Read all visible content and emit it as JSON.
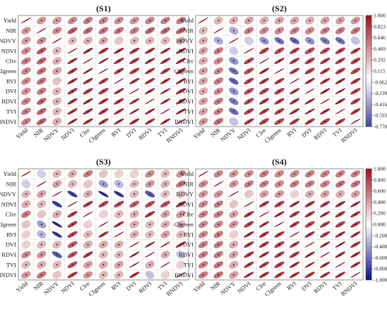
{
  "variables": [
    "Yield",
    "NIR",
    "NDVY",
    "NDVI",
    "CIre",
    "CIgreen",
    "RVI",
    "DVI",
    "RDVI",
    "TVI",
    "BNDVI"
  ],
  "colorbars": [
    {
      "ticks": [
        "1.000",
        "0.823",
        "0.646",
        "0.469",
        "0.292",
        "0.115",
        "-0.062",
        "-0.239",
        "-0.416",
        "-0.593",
        "-0.770"
      ],
      "min": -0.77,
      "max": 1.0
    },
    {
      "ticks": [
        "1.000",
        "0.800",
        "0.600",
        "0.400",
        "0.200",
        "0.000",
        "-0.200",
        "-0.400",
        "-0.600",
        "-0.800",
        "-1.000"
      ],
      "min": -1.0,
      "max": 1.0
    }
  ],
  "colors": {
    "negative": "#0b0b8f",
    "neutral": "#ffffff",
    "positive": "#a30d1a",
    "mark": "#2e7d32",
    "grid": "#dddddd"
  },
  "chart_data": [
    {
      "type": "heatmap",
      "title": "(S1)",
      "variables": [
        "Yield",
        "NIR",
        "NDVY",
        "NDVI",
        "CIre",
        "CIgreen",
        "RVI",
        "DVI",
        "RDVI",
        "TVI",
        "BNDVI"
      ],
      "matrix": [
        [
          1.0,
          0.45,
          0.42,
          0.5,
          0.55,
          0.52,
          0.5,
          0.48,
          0.52,
          0.55,
          0.55
        ],
        [
          0.45,
          1.0,
          0.5,
          0.7,
          0.65,
          0.6,
          0.6,
          0.55,
          0.65,
          0.65,
          0.68
        ],
        [
          0.42,
          0.5,
          1.0,
          0.3,
          0.35,
          0.4,
          0.25,
          0.3,
          0.32,
          0.3,
          0.35
        ],
        [
          0.5,
          0.7,
          0.3,
          1.0,
          0.9,
          0.85,
          0.9,
          0.85,
          0.88,
          0.9,
          0.92
        ],
        [
          0.55,
          0.65,
          0.35,
          0.9,
          1.0,
          0.95,
          0.88,
          0.85,
          0.9,
          0.88,
          0.9
        ],
        [
          0.52,
          0.6,
          0.4,
          0.85,
          0.95,
          1.0,
          0.85,
          0.82,
          0.88,
          0.85,
          0.86
        ],
        [
          0.5,
          0.6,
          0.25,
          0.9,
          0.88,
          0.85,
          1.0,
          0.9,
          0.88,
          0.9,
          0.92
        ],
        [
          0.48,
          0.55,
          0.3,
          0.85,
          0.85,
          0.82,
          0.9,
          1.0,
          0.92,
          0.95,
          0.88
        ],
        [
          0.52,
          0.65,
          0.32,
          0.88,
          0.9,
          0.88,
          0.88,
          0.92,
          1.0,
          0.93,
          0.9
        ],
        [
          0.55,
          0.65,
          0.3,
          0.9,
          0.88,
          0.85,
          0.9,
          0.95,
          0.93,
          1.0,
          0.92
        ],
        [
          0.55,
          0.68,
          0.35,
          0.92,
          0.9,
          0.86,
          0.92,
          0.88,
          0.9,
          0.92,
          1.0
        ]
      ]
    },
    {
      "type": "heatmap",
      "title": "(S2)",
      "variables": [
        "Yield",
        "NIR",
        "NDVY",
        "NDVI",
        "CIre",
        "CIgreen",
        "RVI",
        "DVI",
        "RDVI",
        "TVI",
        "BNDVI"
      ],
      "matrix": [
        [
          1.0,
          0.3,
          0.35,
          0.4,
          0.35,
          0.4,
          0.38,
          0.35,
          0.4,
          0.4,
          0.45
        ],
        [
          0.3,
          1.0,
          -0.35,
          0.55,
          0.5,
          0.5,
          0.55,
          0.5,
          0.55,
          0.55,
          0.6
        ],
        [
          0.35,
          -0.35,
          1.0,
          -0.2,
          -0.45,
          -0.6,
          -0.65,
          -0.45,
          -0.55,
          -0.6,
          -0.25
        ],
        [
          0.4,
          0.55,
          -0.2,
          1.0,
          0.8,
          0.75,
          0.8,
          0.75,
          0.78,
          0.8,
          0.85
        ],
        [
          0.35,
          0.5,
          -0.45,
          0.8,
          1.0,
          0.9,
          0.85,
          0.8,
          0.85,
          0.85,
          0.8
        ],
        [
          0.4,
          0.5,
          -0.6,
          0.75,
          0.9,
          1.0,
          0.85,
          0.8,
          0.85,
          0.82,
          0.78
        ],
        [
          0.38,
          0.55,
          -0.65,
          0.8,
          0.85,
          0.85,
          1.0,
          0.9,
          0.88,
          0.9,
          0.85
        ],
        [
          0.35,
          0.5,
          -0.45,
          0.75,
          0.8,
          0.8,
          0.9,
          1.0,
          0.92,
          0.95,
          0.85
        ],
        [
          0.4,
          0.55,
          -0.55,
          0.78,
          0.85,
          0.85,
          0.88,
          0.92,
          1.0,
          0.9,
          0.82
        ],
        [
          0.4,
          0.55,
          -0.6,
          0.8,
          0.85,
          0.82,
          0.9,
          0.95,
          0.9,
          1.0,
          0.86
        ],
        [
          0.45,
          0.6,
          -0.25,
          0.85,
          0.8,
          0.78,
          0.85,
          0.85,
          0.82,
          0.86,
          1.0
        ]
      ]
    },
    {
      "type": "heatmap",
      "title": "(S3)",
      "variables": [
        "Yield",
        "NIR",
        "NDVY",
        "NDVI",
        "CIre",
        "CIgreen",
        "RVI",
        "DVI",
        "RDVI",
        "TVI",
        "BNDVI"
      ],
      "matrix": [
        [
          1.0,
          -0.2,
          0.3,
          0.35,
          0.55,
          0.25,
          0.2,
          0.2,
          0.5,
          0.3,
          0.45
        ],
        [
          -0.2,
          1.0,
          0.4,
          0.3,
          0.25,
          -0.4,
          -0.3,
          0.3,
          0.45,
          0.35,
          0.6
        ],
        [
          0.3,
          0.4,
          1.0,
          -0.8,
          0.35,
          -0.9,
          -0.85,
          0.3,
          -0.7,
          0.3,
          0.25
        ],
        [
          0.35,
          0.3,
          -0.8,
          1.0,
          0.85,
          0.8,
          0.8,
          0.7,
          0.75,
          0.75,
          0.85
        ],
        [
          0.55,
          0.25,
          0.35,
          0.85,
          1.0,
          0.2,
          0.3,
          0.35,
          0.85,
          0.4,
          0.45
        ],
        [
          0.25,
          -0.4,
          -0.9,
          0.8,
          0.2,
          1.0,
          0.9,
          0.35,
          0.3,
          0.35,
          0.3
        ],
        [
          0.2,
          -0.3,
          -0.85,
          0.8,
          0.3,
          0.9,
          1.0,
          0.35,
          0.3,
          0.4,
          0.3
        ],
        [
          0.2,
          0.3,
          0.3,
          0.7,
          0.35,
          0.35,
          0.35,
          1.0,
          0.95,
          0.98,
          0.9
        ],
        [
          0.5,
          0.45,
          -0.7,
          0.75,
          0.85,
          0.3,
          0.3,
          0.95,
          1.0,
          0.35,
          -0.25
        ],
        [
          0.3,
          0.35,
          0.3,
          0.75,
          0.4,
          0.35,
          0.4,
          0.98,
          0.35,
          1.0,
          0.2
        ],
        [
          0.45,
          0.6,
          0.25,
          0.85,
          0.45,
          0.3,
          0.3,
          0.9,
          -0.25,
          0.2,
          1.0
        ]
      ]
    },
    {
      "type": "heatmap",
      "title": "(S4)",
      "variables": [
        "Yield",
        "NIR",
        "NDVY",
        "NDVI",
        "CIre",
        "CIgreen",
        "RVI",
        "DVI",
        "RDVI",
        "TVI",
        "BNDVI"
      ],
      "matrix": [
        [
          1.0,
          0.5,
          0.45,
          0.5,
          0.55,
          0.5,
          0.5,
          0.55,
          0.55,
          0.55,
          0.55
        ],
        [
          0.5,
          1.0,
          0.45,
          0.55,
          0.55,
          0.5,
          0.55,
          0.55,
          0.55,
          0.6,
          0.6
        ],
        [
          0.45,
          0.45,
          1.0,
          0.25,
          0.4,
          0.45,
          0.2,
          0.35,
          0.4,
          0.35,
          0.4
        ],
        [
          0.5,
          0.55,
          0.25,
          1.0,
          0.85,
          0.8,
          0.9,
          0.85,
          0.85,
          0.88,
          0.92
        ],
        [
          0.55,
          0.55,
          0.4,
          0.85,
          1.0,
          0.92,
          0.85,
          0.85,
          0.9,
          0.85,
          0.88
        ],
        [
          0.5,
          0.5,
          0.45,
          0.8,
          0.92,
          1.0,
          0.85,
          0.8,
          0.85,
          0.82,
          0.85
        ],
        [
          0.5,
          0.55,
          0.2,
          0.9,
          0.85,
          0.85,
          1.0,
          0.88,
          0.85,
          0.9,
          0.9
        ],
        [
          0.55,
          0.55,
          0.35,
          0.85,
          0.85,
          0.8,
          0.88,
          1.0,
          0.92,
          0.95,
          0.88
        ],
        [
          0.55,
          0.55,
          0.4,
          0.85,
          0.9,
          0.85,
          0.85,
          0.92,
          1.0,
          0.9,
          0.9
        ],
        [
          0.55,
          0.6,
          0.35,
          0.88,
          0.85,
          0.82,
          0.9,
          0.95,
          0.9,
          1.0,
          0.9
        ],
        [
          0.55,
          0.6,
          0.4,
          0.92,
          0.88,
          0.85,
          0.9,
          0.88,
          0.9,
          0.9,
          1.0
        ]
      ]
    }
  ]
}
